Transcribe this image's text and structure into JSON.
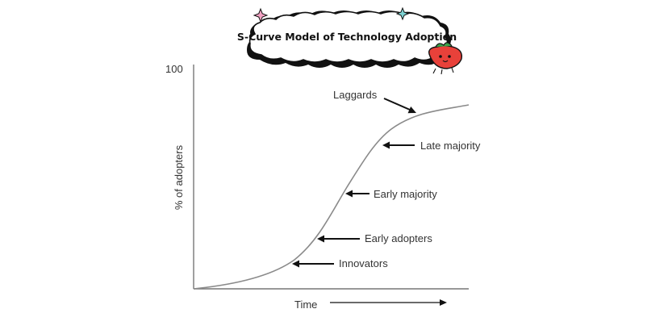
{
  "title": "S-Curve Model of Technology Adoption",
  "y_axis": {
    "label": "% of adopters",
    "max_label": "100"
  },
  "x_axis": {
    "label": "Time"
  },
  "stages": [
    {
      "label": "Innovators"
    },
    {
      "label": "Early adopters"
    },
    {
      "label": "Early majority"
    },
    {
      "label": "Late majority"
    },
    {
      "label": "Laggards"
    }
  ],
  "colors": {
    "curve": "#8a8a8a",
    "axis": "#777777",
    "text": "#333333",
    "arrow": "#111111",
    "cloud_fill": "#ffffff",
    "cloud_stroke": "#111111",
    "star_pink": "#f4a3c4",
    "star_teal": "#7fd3d3",
    "mascot": "#e8413a"
  },
  "decorations": [
    "pink-star-icon",
    "teal-star-icon",
    "strawberry-mascot-icon"
  ]
}
